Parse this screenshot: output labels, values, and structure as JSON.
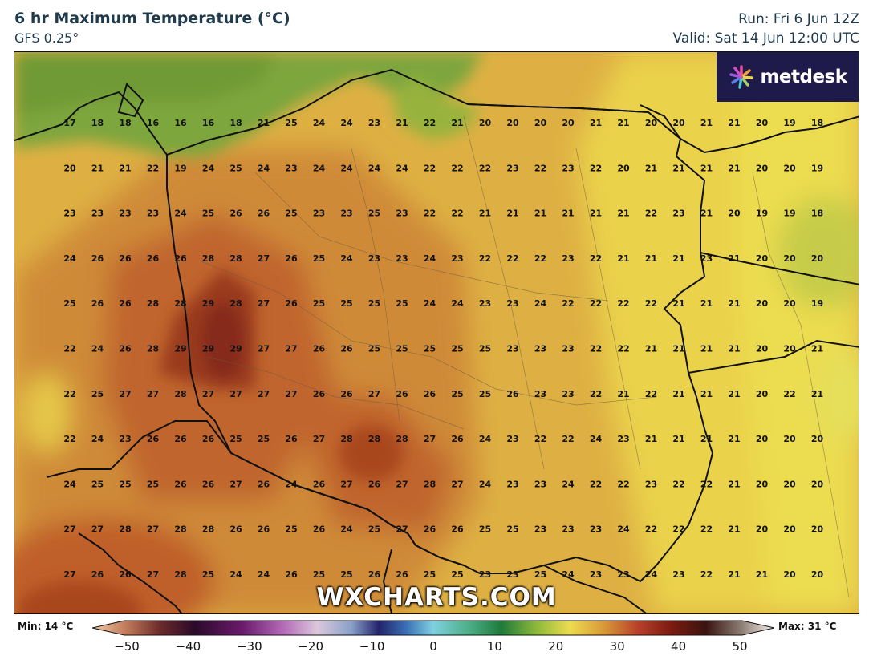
{
  "header": {
    "title": "6 hr Maximum Temperature (°C)",
    "model": "GFS 0.25°",
    "run": "Run: Fri 6 Jun 12Z",
    "valid": "Valid: Sat 14 Jun 12:00 UTC"
  },
  "logo": {
    "text": "metdesk",
    "icon": "pinwheel-icon"
  },
  "watermark": "WXCHARTS.COM",
  "legend": {
    "min_label": "Min: 14 °C",
    "max_label": "Max: 31 °C",
    "ticks": [
      "−50",
      "−40",
      "−30",
      "−20",
      "−10",
      "0",
      "10",
      "20",
      "30",
      "40",
      "50"
    ],
    "scale_min": -50,
    "scale_max": 50
  },
  "colors": {
    "sea": "#7aa23a",
    "warm_low": "#e9d04b",
    "mid": "#dca23c",
    "hot": "#c06a2e",
    "hottest": "#8f2d1a",
    "border": "#111111",
    "logo_bg": "#1e1b4b"
  },
  "map_values": [
    [
      "17",
      "18",
      "18",
      "16",
      "16",
      "16",
      "18",
      "21",
      "25",
      "24",
      "24",
      "23",
      "21",
      "22",
      "21",
      "20",
      "20",
      "20",
      "20",
      "21",
      "21",
      "20",
      "20",
      "21",
      "21",
      "20",
      "19",
      "18"
    ],
    [
      "20",
      "21",
      "21",
      "22",
      "19",
      "24",
      "25",
      "24",
      "23",
      "24",
      "24",
      "24",
      "24",
      "22",
      "22",
      "22",
      "23",
      "22",
      "23",
      "22",
      "20",
      "21",
      "21",
      "21",
      "21",
      "20",
      "20",
      "19"
    ],
    [
      "23",
      "23",
      "23",
      "23",
      "24",
      "25",
      "26",
      "26",
      "25",
      "23",
      "23",
      "25",
      "23",
      "22",
      "22",
      "21",
      "21",
      "21",
      "21",
      "21",
      "21",
      "22",
      "23",
      "21",
      "20",
      "19",
      "19",
      "18"
    ],
    [
      "24",
      "26",
      "26",
      "26",
      "26",
      "28",
      "28",
      "27",
      "26",
      "25",
      "24",
      "23",
      "23",
      "24",
      "23",
      "22",
      "22",
      "22",
      "23",
      "22",
      "21",
      "21",
      "21",
      "23",
      "21",
      "20",
      "20",
      "20"
    ],
    [
      "25",
      "26",
      "26",
      "28",
      "28",
      "29",
      "28",
      "27",
      "26",
      "25",
      "25",
      "25",
      "25",
      "24",
      "24",
      "23",
      "23",
      "24",
      "22",
      "22",
      "22",
      "22",
      "21",
      "21",
      "21",
      "20",
      "20",
      "19"
    ],
    [
      "22",
      "24",
      "26",
      "28",
      "29",
      "29",
      "29",
      "27",
      "27",
      "26",
      "26",
      "25",
      "25",
      "25",
      "25",
      "25",
      "23",
      "23",
      "23",
      "22",
      "22",
      "21",
      "21",
      "21",
      "21",
      "20",
      "20",
      "21"
    ],
    [
      "22",
      "25",
      "27",
      "27",
      "28",
      "27",
      "27",
      "27",
      "27",
      "26",
      "26",
      "27",
      "26",
      "26",
      "25",
      "25",
      "26",
      "23",
      "23",
      "22",
      "21",
      "22",
      "21",
      "21",
      "21",
      "20",
      "22",
      "21"
    ],
    [
      "22",
      "24",
      "23",
      "26",
      "26",
      "26",
      "25",
      "25",
      "26",
      "27",
      "28",
      "28",
      "28",
      "27",
      "26",
      "24",
      "23",
      "22",
      "22",
      "24",
      "23",
      "21",
      "21",
      "21",
      "21",
      "20",
      "20",
      "20"
    ],
    [
      "24",
      "25",
      "25",
      "25",
      "26",
      "26",
      "27",
      "26",
      "24",
      "26",
      "27",
      "26",
      "27",
      "28",
      "27",
      "24",
      "23",
      "23",
      "24",
      "22",
      "22",
      "23",
      "22",
      "22",
      "21",
      "20",
      "20",
      "20"
    ],
    [
      "27",
      "27",
      "28",
      "27",
      "28",
      "28",
      "26",
      "26",
      "25",
      "26",
      "24",
      "25",
      "27",
      "26",
      "26",
      "25",
      "25",
      "23",
      "23",
      "23",
      "24",
      "22",
      "22",
      "22",
      "21",
      "20",
      "20",
      "20"
    ],
    [
      "27",
      "26",
      "26",
      "27",
      "28",
      "25",
      "24",
      "24",
      "26",
      "25",
      "25",
      "26",
      "26",
      "25",
      "25",
      "23",
      "23",
      "25",
      "24",
      "23",
      "23",
      "24",
      "23",
      "22",
      "21",
      "21",
      "20",
      "20"
    ]
  ]
}
